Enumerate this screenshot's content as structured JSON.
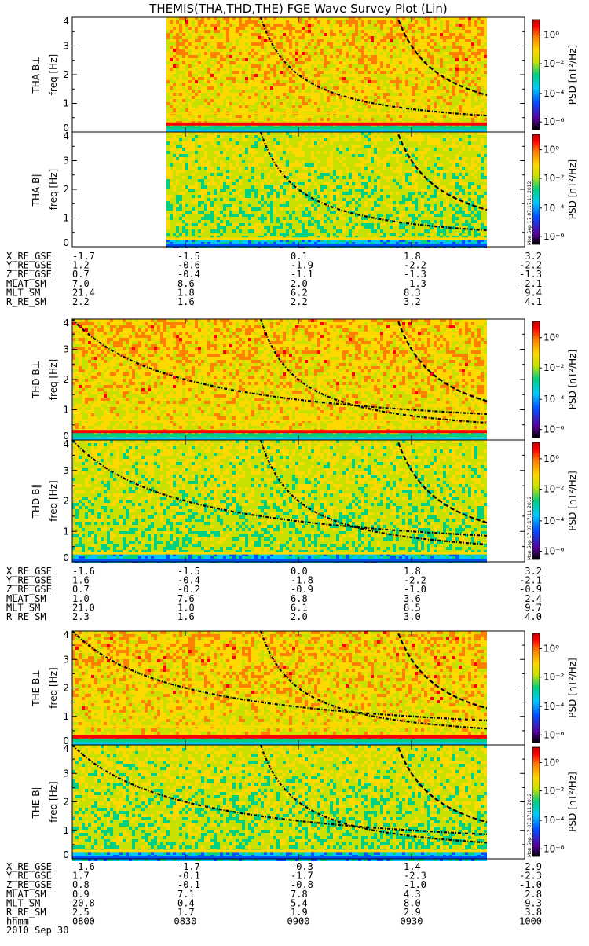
{
  "title": "THEMIS(THA,THD,THE) FGE Wave Survey Plot (Lin)",
  "colors": {
    "background": "#ffffff",
    "curve": "#000000",
    "palette": [
      "#000000",
      "#5a00a0",
      "#0050ff",
      "#00c8ff",
      "#00d080",
      "#c8e000",
      "#ffd800",
      "#ff8000",
      "#ff0000",
      "#c00000"
    ]
  },
  "colorbar": {
    "label": "PSD [nT²/Hz]",
    "ticks": [
      "10⁰",
      "10⁻²",
      "10⁻⁴",
      "10⁻⁶"
    ],
    "stamp": "Mon Sep 17 07:17:11 2012"
  },
  "chart_data": {
    "type": "heatmap",
    "x_range_utc": [
      "08:00",
      "10:00"
    ],
    "y_range_hz": [
      0,
      4
    ],
    "ytick_labels": [
      "0",
      "1",
      "2",
      "3",
      "4"
    ],
    "time_tick_labels": [
      "0800",
      "0830",
      "0900",
      "0930",
      "1000"
    ],
    "date_label": "2010 Sep 30",
    "axis_label_name": "hhmm",
    "panels": [
      {
        "probe": "THA",
        "component": "B⊥",
        "ylabel": "THA B⊥",
        "yunit": "freq [Hz]",
        "data_start": "08:25",
        "data_end": "09:50"
      },
      {
        "probe": "THA",
        "component": "B∥",
        "ylabel": "THA B∥",
        "yunit": "freq [Hz]",
        "data_start": "08:25",
        "data_end": "09:50"
      },
      {
        "probe": "THD",
        "component": "B⊥",
        "ylabel": "THD B⊥",
        "yunit": "freq [Hz]",
        "data_start": "08:00",
        "data_end": "09:50"
      },
      {
        "probe": "THD",
        "component": "B∥",
        "ylabel": "THD B∥",
        "yunit": "freq [Hz]",
        "data_start": "08:00",
        "data_end": "09:50"
      },
      {
        "probe": "THE",
        "component": "B⊥",
        "ylabel": "THE B⊥",
        "yunit": "freq [Hz]",
        "data_start": "08:00",
        "data_end": "09:50"
      },
      {
        "probe": "THE",
        "component": "B∥",
        "ylabel": "THE B∥",
        "yunit": "freq [Hz]",
        "data_start": "08:00",
        "data_end": "09:50"
      }
    ],
    "orbit_tables": [
      {
        "probe": "THA",
        "rows": [
          {
            "name": "X_RE_GSE",
            "values": [
              "-1.7",
              "-1.5",
              "0.1",
              "1.8",
              "3.2"
            ]
          },
          {
            "name": "Y_RE_GSE",
            "values": [
              "1.2",
              "-0.6",
              "-1.9",
              "-2.2",
              "-2.2"
            ]
          },
          {
            "name": "Z_RE_GSE",
            "values": [
              "0.7",
              "-0.4",
              "-1.1",
              "-1.3",
              "-1.3"
            ]
          },
          {
            "name": "MLAT_SM",
            "values": [
              "7.0",
              "8.6",
              "2.0",
              "-1.3",
              "-2.1"
            ]
          },
          {
            "name": "MLT_SM",
            "values": [
              "21.4",
              "1.8",
              "6.2",
              "8.3",
              "9.4"
            ]
          },
          {
            "name": "R_RE_SM",
            "values": [
              "2.2",
              "1.6",
              "2.2",
              "3.2",
              "4.1"
            ]
          }
        ]
      },
      {
        "probe": "THD",
        "rows": [
          {
            "name": "X_RE_GSE",
            "values": [
              "-1.6",
              "-1.5",
              "0.0",
              "1.8",
              "3.2"
            ]
          },
          {
            "name": "Y_RE_GSE",
            "values": [
              "1.6",
              "-0.4",
              "-1.8",
              "-2.2",
              "-2.1"
            ]
          },
          {
            "name": "Z_RE_GSE",
            "values": [
              "0.7",
              "-0.2",
              "-0.9",
              "-1.0",
              "-0.9"
            ]
          },
          {
            "name": "MLAT_SM",
            "values": [
              "1.0",
              "7.6",
              "6.8",
              "3.6",
              "2.4"
            ]
          },
          {
            "name": "MLT_SM",
            "values": [
              "21.0",
              "1.0",
              "6.1",
              "8.5",
              "9.7"
            ]
          },
          {
            "name": "R_RE_SM",
            "values": [
              "2.3",
              "1.6",
              "2.0",
              "3.0",
              "4.0"
            ]
          }
        ]
      },
      {
        "probe": "THE",
        "rows": [
          {
            "name": "X_RE_GSE",
            "values": [
              "-1.6",
              "-1.7",
              "-0.3",
              "1.4",
              "2.9"
            ]
          },
          {
            "name": "Y_RE_GSE",
            "values": [
              "1.7",
              "-0.1",
              "-1.7",
              "-2.3",
              "-2.3"
            ]
          },
          {
            "name": "Z_RE_GSE",
            "values": [
              "0.8",
              "-0.1",
              "-0.8",
              "-1.0",
              "-1.0"
            ]
          },
          {
            "name": "MLAT_SM",
            "values": [
              "0.9",
              "7.1",
              "7.8",
              "4.3",
              "2.8"
            ]
          },
          {
            "name": "MLT_SM",
            "values": [
              "20.8",
              "0.4",
              "5.4",
              "8.0",
              "9.3"
            ]
          },
          {
            "name": "R_RE_SM",
            "values": [
              "2.5",
              "1.7",
              "1.9",
              "2.9",
              "3.8"
            ]
          }
        ]
      }
    ]
  }
}
